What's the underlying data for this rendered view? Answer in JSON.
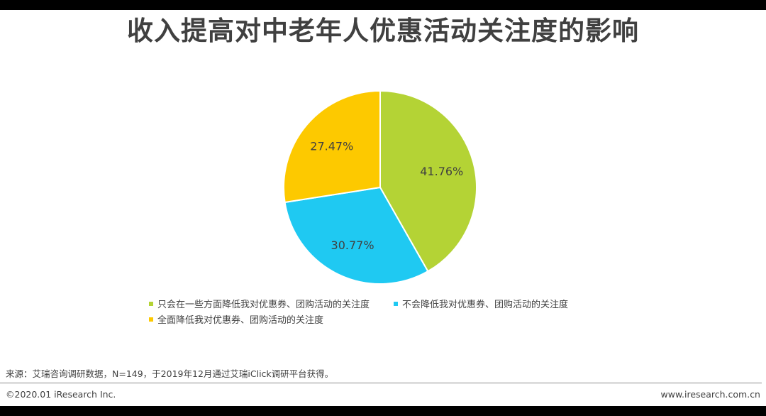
{
  "title": "收入提高对中老年人优惠活动关注度的影响",
  "chart_data": {
    "type": "pie",
    "slices": [
      {
        "label": "只会在一些方面降低我对优惠券、团购活动的关注度",
        "value": 41.76,
        "value_label": "41.76%",
        "color": "#b4d335"
      },
      {
        "label": "不会降低我对优惠券、团购活动的关注度",
        "value": 30.77,
        "value_label": "30.77%",
        "color": "#1fc9f2"
      },
      {
        "label": "全面降低我对优惠券、团购活动的关注度",
        "value": 27.47,
        "value_label": "27.47%",
        "color": "#fdc900"
      }
    ],
    "legend_position": "bottom"
  },
  "source": "来源：艾瑞咨询调研数据，N=149，于2019年12月通过艾瑞iClick调研平台获得。",
  "footer": {
    "copyright": "©2020.01 iResearch Inc.",
    "website": "www.iresearch.com.cn"
  }
}
